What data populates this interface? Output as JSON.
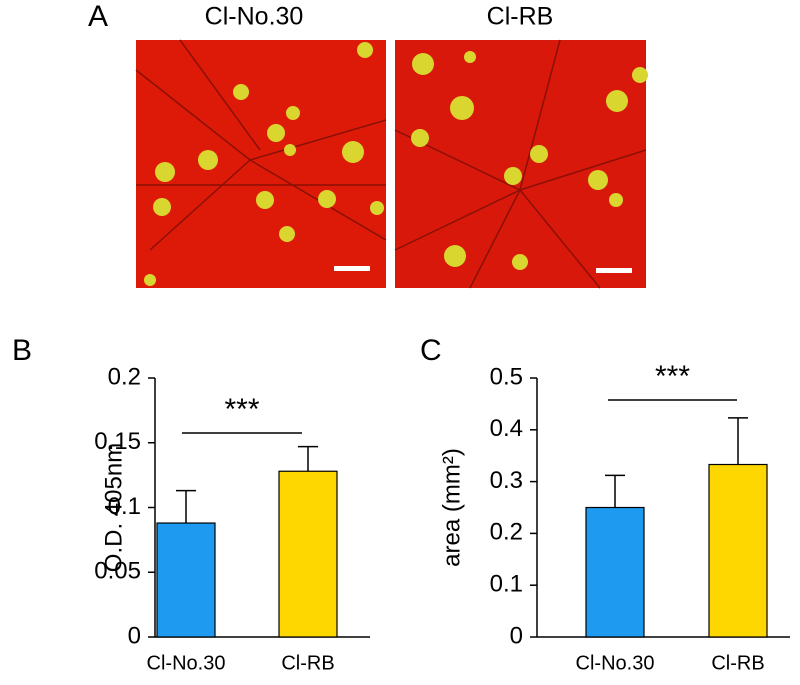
{
  "panel_a": {
    "label": "A",
    "images": [
      "Cl-No.30",
      "Cl-RB"
    ]
  },
  "chart_data": [
    {
      "type": "bar",
      "panel_label": "B",
      "y_label": "O.D. 405nm",
      "categories": [
        "Cl-No.30",
        "Cl-RB"
      ],
      "values": [
        0.088,
        0.128
      ],
      "errors": [
        0.025,
        0.019
      ],
      "colors": [
        "#1e9af0",
        "#ffd700"
      ],
      "annotation": "***",
      "ylim": [
        0,
        0.2
      ],
      "yticks": [
        0,
        0.05,
        0.1,
        0.15,
        0.2
      ]
    },
    {
      "type": "bar",
      "panel_label": "C",
      "y_label": "area (mm²)",
      "categories": [
        "Cl-No.30",
        "Cl-RB"
      ],
      "values": [
        0.25,
        0.333
      ],
      "errors": [
        0.062,
        0.09
      ],
      "colors": [
        "#1e9af0",
        "#ffd700"
      ],
      "annotation": "***",
      "ylim": [
        0,
        0.5
      ],
      "yticks": [
        0,
        0.1,
        0.2,
        0.3,
        0.4,
        0.5
      ]
    }
  ]
}
